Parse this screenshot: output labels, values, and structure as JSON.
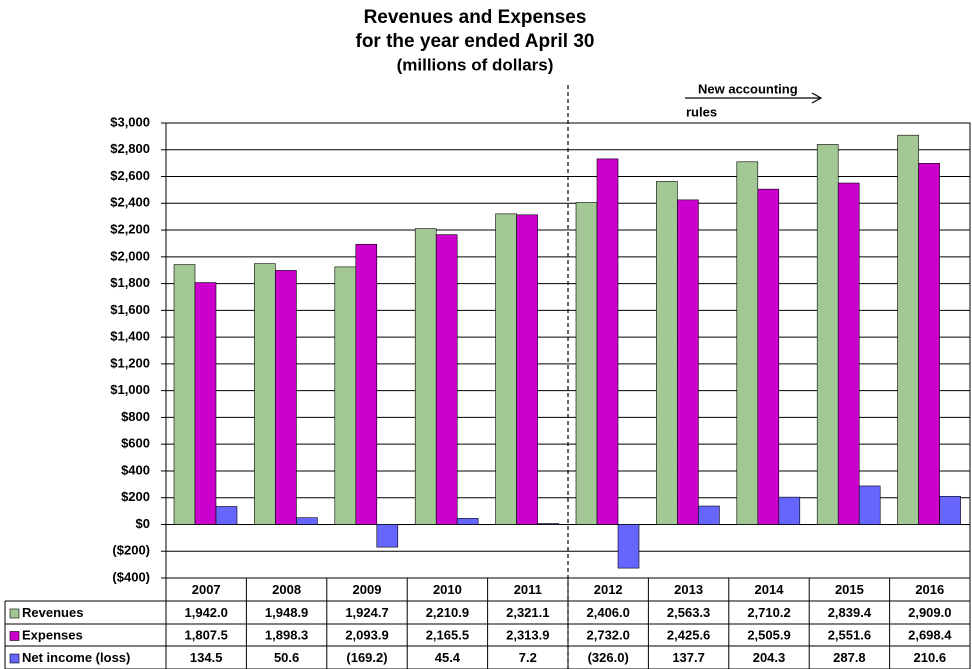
{
  "chart_data": {
    "type": "bar",
    "title": [
      "Revenues and Expenses",
      "for the year ended April 30"
    ],
    "subtitle": "(millions of dollars)",
    "annotation": [
      "New accounting",
      "rules"
    ],
    "categories": [
      "2007",
      "2008",
      "2009",
      "2010",
      "2011",
      "2012",
      "2013",
      "2014",
      "2015",
      "2016"
    ],
    "series": [
      {
        "name": "Revenues",
        "color": "#a3c795",
        "values": [
          1942.0,
          1948.9,
          1924.7,
          2210.9,
          2321.1,
          2406.0,
          2563.3,
          2710.2,
          2839.4,
          2909.0
        ],
        "value_labels": [
          "1,942.0",
          "1,948.9",
          "1,924.7",
          "2,210.9",
          "2,321.1",
          "2,406.0",
          "2,563.3",
          "2,710.2",
          "2,839.4",
          "2,909.0"
        ]
      },
      {
        "name": "Expenses",
        "color": "#cc00cc",
        "values": [
          1807.5,
          1898.3,
          2093.9,
          2165.5,
          2313.9,
          2732.0,
          2425.6,
          2505.9,
          2551.6,
          2698.4
        ],
        "value_labels": [
          "1,807.5",
          "1,898.3",
          "2,093.9",
          "2,165.5",
          "2,313.9",
          "2,732.0",
          "2,425.6",
          "2,505.9",
          "2,551.6",
          "2,698.4"
        ]
      },
      {
        "name": "Net income (loss)",
        "color": "#6666ff",
        "values": [
          134.5,
          50.6,
          -169.2,
          45.4,
          7.2,
          -326.0,
          137.7,
          204.3,
          287.8,
          210.6
        ],
        "value_labels": [
          "134.5",
          "50.6",
          "(169.2)",
          "45.4",
          "7.2",
          "(326.0)",
          "137.7",
          "204.3",
          "287.8",
          "210.6"
        ]
      }
    ],
    "ylim": [
      -400,
      3000
    ],
    "yticks": [
      {
        "value": -400,
        "label": "($400)"
      },
      {
        "value": -200,
        "label": "($200)"
      },
      {
        "value": 0,
        "label": "$0"
      },
      {
        "value": 200,
        "label": "$200"
      },
      {
        "value": 400,
        "label": "$400"
      },
      {
        "value": 600,
        "label": "$600"
      },
      {
        "value": 800,
        "label": "$800"
      },
      {
        "value": 1000,
        "label": "$1,000"
      },
      {
        "value": 1200,
        "label": "$1,200"
      },
      {
        "value": 1400,
        "label": "$1,400"
      },
      {
        "value": 1600,
        "label": "$1,600"
      },
      {
        "value": 1800,
        "label": "$1,800"
      },
      {
        "value": 2000,
        "label": "$2,000"
      },
      {
        "value": 2200,
        "label": "$2,200"
      },
      {
        "value": 2400,
        "label": "$2,400"
      },
      {
        "value": 2600,
        "label": "$2,600"
      },
      {
        "value": 2800,
        "label": "$2,800"
      },
      {
        "value": 3000,
        "label": "$3,000"
      }
    ],
    "grid": true
  }
}
